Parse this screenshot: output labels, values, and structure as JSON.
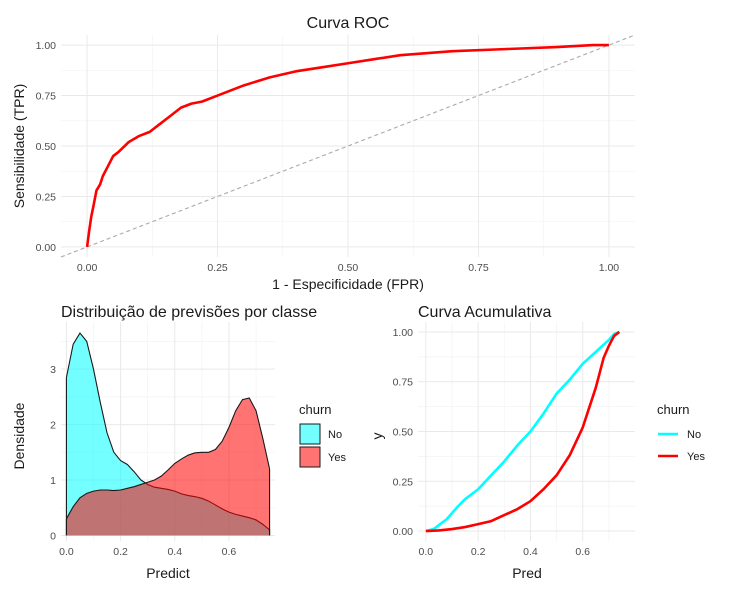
{
  "colors": {
    "no": "#00ffff",
    "yes": "#ff0000",
    "roc": "#ff0000",
    "diagonal": "#aaaaaa"
  },
  "chart_data": [
    {
      "type": "line",
      "title": "Curva ROC",
      "xlabel": "1 - Especificidade (FPR)",
      "ylabel": "Sensibilidade (TPR)",
      "xlim": [
        -0.05,
        1.05
      ],
      "ylim": [
        -0.05,
        1.05
      ],
      "xticks": [
        "0.00",
        "0.25",
        "0.50",
        "0.75",
        "1.00"
      ],
      "yticks": [
        "0.00",
        "0.25",
        "0.50",
        "0.75",
        "1.00"
      ],
      "grid": true,
      "series": [
        {
          "x": [
            0,
            0.004,
            0.008,
            0.012,
            0.018,
            0.025,
            0.03,
            0.04,
            0.05,
            0.06,
            0.08,
            0.1,
            0.12,
            0.14,
            0.16,
            0.18,
            0.2,
            0.22,
            0.25,
            0.3,
            0.35,
            0.4,
            0.45,
            0.5,
            0.55,
            0.6,
            0.7,
            0.8,
            0.9,
            0.97,
            1.0
          ],
          "y": [
            0,
            0.08,
            0.15,
            0.2,
            0.28,
            0.31,
            0.35,
            0.4,
            0.45,
            0.47,
            0.52,
            0.55,
            0.57,
            0.61,
            0.65,
            0.69,
            0.71,
            0.72,
            0.75,
            0.8,
            0.84,
            0.87,
            0.89,
            0.91,
            0.93,
            0.95,
            0.97,
            0.98,
            0.99,
            1.0,
            1.0
          ]
        },
        {
          "x": [
            0,
            1
          ],
          "y": [
            0,
            1
          ]
        }
      ]
    },
    {
      "type": "area",
      "title": "Distribuição de previsões por classe",
      "xlabel": "Predict",
      "ylabel": "Densidade",
      "xlim": [
        -0.02,
        0.77
      ],
      "ylim": [
        -0.1,
        3.85
      ],
      "xticks": [
        "0.0",
        "0.2",
        "0.4",
        "0.6"
      ],
      "yticks": [
        "0",
        "1",
        "2",
        "3"
      ],
      "legend_title": "churn",
      "legend_position": "right",
      "x": [
        0.0,
        0.025,
        0.05,
        0.075,
        0.1,
        0.125,
        0.15,
        0.175,
        0.2,
        0.225,
        0.25,
        0.275,
        0.3,
        0.325,
        0.35,
        0.375,
        0.4,
        0.425,
        0.45,
        0.475,
        0.5,
        0.525,
        0.55,
        0.575,
        0.6,
        0.625,
        0.65,
        0.675,
        0.7,
        0.725,
        0.75
      ],
      "series": [
        {
          "name": "No",
          "values": [
            2.85,
            3.45,
            3.65,
            3.5,
            3.0,
            2.4,
            1.85,
            1.5,
            1.35,
            1.28,
            1.15,
            1.0,
            0.92,
            0.87,
            0.85,
            0.83,
            0.8,
            0.75,
            0.72,
            0.7,
            0.67,
            0.62,
            0.55,
            0.48,
            0.42,
            0.38,
            0.35,
            0.32,
            0.28,
            0.2,
            0.1
          ]
        },
        {
          "name": "Yes",
          "values": [
            0.3,
            0.52,
            0.68,
            0.76,
            0.8,
            0.82,
            0.82,
            0.81,
            0.82,
            0.85,
            0.88,
            0.92,
            0.96,
            1.0,
            1.07,
            1.18,
            1.3,
            1.38,
            1.45,
            1.49,
            1.5,
            1.5,
            1.55,
            1.7,
            1.95,
            2.25,
            2.45,
            2.48,
            2.25,
            1.75,
            1.2
          ]
        }
      ]
    },
    {
      "type": "line",
      "title": "Curva Acumulativa",
      "xlabel": "Pred",
      "ylabel": "y",
      "xlim": [
        -0.03,
        0.8
      ],
      "ylim": [
        -0.05,
        1.05
      ],
      "xticks": [
        "0.0",
        "0.2",
        "0.4",
        "0.6"
      ],
      "yticks": [
        "0.00",
        "0.25",
        "0.50",
        "0.75",
        "1.00"
      ],
      "legend_title": "churn",
      "legend_position": "right",
      "series": [
        {
          "name": "No",
          "x": [
            0.0,
            0.03,
            0.05,
            0.08,
            0.1,
            0.12,
            0.15,
            0.2,
            0.25,
            0.3,
            0.35,
            0.4,
            0.45,
            0.5,
            0.55,
            0.6,
            0.65,
            0.7,
            0.72,
            0.74
          ],
          "y": [
            0.0,
            0.01,
            0.03,
            0.06,
            0.09,
            0.12,
            0.16,
            0.21,
            0.28,
            0.35,
            0.43,
            0.5,
            0.59,
            0.69,
            0.76,
            0.84,
            0.9,
            0.96,
            0.99,
            1.0
          ]
        },
        {
          "name": "Yes",
          "x": [
            0.0,
            0.05,
            0.1,
            0.15,
            0.2,
            0.25,
            0.3,
            0.35,
            0.4,
            0.45,
            0.5,
            0.55,
            0.6,
            0.62,
            0.65,
            0.68,
            0.7,
            0.72,
            0.74
          ],
          "y": [
            0.0,
            0.003,
            0.01,
            0.02,
            0.035,
            0.05,
            0.08,
            0.11,
            0.15,
            0.21,
            0.28,
            0.38,
            0.52,
            0.6,
            0.72,
            0.87,
            0.93,
            0.98,
            1.0
          ]
        }
      ]
    }
  ]
}
